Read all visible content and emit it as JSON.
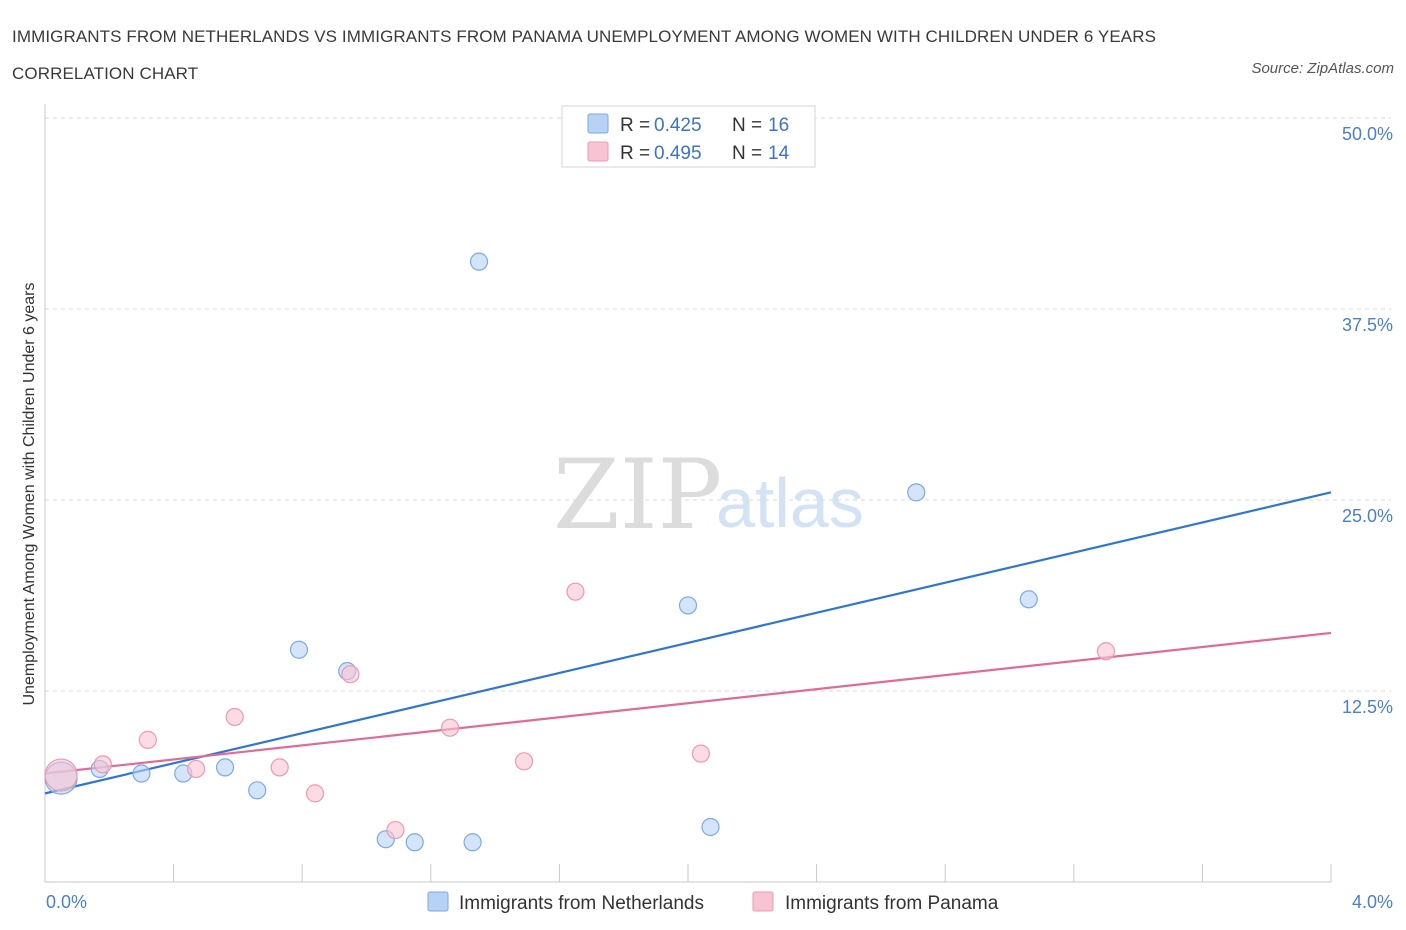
{
  "header": {
    "title": "IMMIGRANTS FROM NETHERLANDS VS IMMIGRANTS FROM PANAMA UNEMPLOYMENT AMONG WOMEN WITH CHILDREN UNDER 6 YEARS CORRELATION CHART",
    "source": "Source: ZipAtlas.com"
  },
  "watermark": {
    "zip": "ZIP",
    "atlas": "atlas"
  },
  "legend": {
    "r_label": "R = ",
    "n_label": "N = ",
    "rows": [
      {
        "r": "0.425",
        "n": "16"
      },
      {
        "r": "0.495",
        "n": "14"
      }
    ]
  },
  "colors": {
    "netherlands_fill": "#b7d2f5",
    "netherlands_stroke": "#7aaae6",
    "netherlands_line": "#2f76d2",
    "panama_fill": "#f8c4d2",
    "panama_stroke": "#ee98b2",
    "panama_line": "#e06b95",
    "grid": "#d8d8d8",
    "axis_label": "#4a7fcf"
  },
  "chart_data": {
    "type": "scatter",
    "xlabel": "",
    "ylabel": "Unemployment Among Women with Children Under 6 years",
    "xlim": [
      0,
      4.0
    ],
    "ylim": [
      0,
      50.0
    ],
    "x_tick_labels": [
      "0.0%",
      "4.0%"
    ],
    "y_ticks": [
      12.5,
      25.0,
      37.5,
      50.0
    ],
    "y_tick_labels": [
      "12.5%",
      "25.0%",
      "37.5%",
      "50.0%"
    ],
    "grid": "horizontal dashed",
    "legend_position": "top-center",
    "series": [
      {
        "name": "Immigrants from Netherlands",
        "points": [
          {
            "x": 0.05,
            "y": 6.8,
            "size": "large"
          },
          {
            "x": 0.17,
            "y": 7.4
          },
          {
            "x": 0.3,
            "y": 7.1
          },
          {
            "x": 0.43,
            "y": 7.1
          },
          {
            "x": 0.56,
            "y": 7.5
          },
          {
            "x": 0.66,
            "y": 6.0
          },
          {
            "x": 0.79,
            "y": 15.2
          },
          {
            "x": 0.94,
            "y": 13.8
          },
          {
            "x": 1.06,
            "y": 2.8
          },
          {
            "x": 1.15,
            "y": 2.6
          },
          {
            "x": 1.33,
            "y": 2.6
          },
          {
            "x": 1.35,
            "y": 40.6
          },
          {
            "x": 2.0,
            "y": 18.1
          },
          {
            "x": 2.07,
            "y": 3.6
          },
          {
            "x": 2.71,
            "y": 25.5
          },
          {
            "x": 3.06,
            "y": 18.5
          }
        ],
        "trend": {
          "x": [
            0.0,
            4.0
          ],
          "y": [
            5.8,
            25.5
          ]
        }
      },
      {
        "name": "Immigrants from Panama",
        "points": [
          {
            "x": 0.05,
            "y": 7.0,
            "size": "large"
          },
          {
            "x": 0.18,
            "y": 7.7
          },
          {
            "x": 0.32,
            "y": 9.3
          },
          {
            "x": 0.47,
            "y": 7.4
          },
          {
            "x": 0.59,
            "y": 10.8
          },
          {
            "x": 0.73,
            "y": 7.5
          },
          {
            "x": 0.84,
            "y": 5.8
          },
          {
            "x": 0.95,
            "y": 13.6
          },
          {
            "x": 1.09,
            "y": 3.4
          },
          {
            "x": 1.26,
            "y": 10.1
          },
          {
            "x": 1.49,
            "y": 7.9
          },
          {
            "x": 1.65,
            "y": 19.0
          },
          {
            "x": 2.04,
            "y": 8.4
          },
          {
            "x": 3.3,
            "y": 15.1
          }
        ],
        "trend": {
          "x": [
            0.0,
            4.0
          ],
          "y": [
            7.1,
            16.3
          ]
        }
      }
    ]
  }
}
